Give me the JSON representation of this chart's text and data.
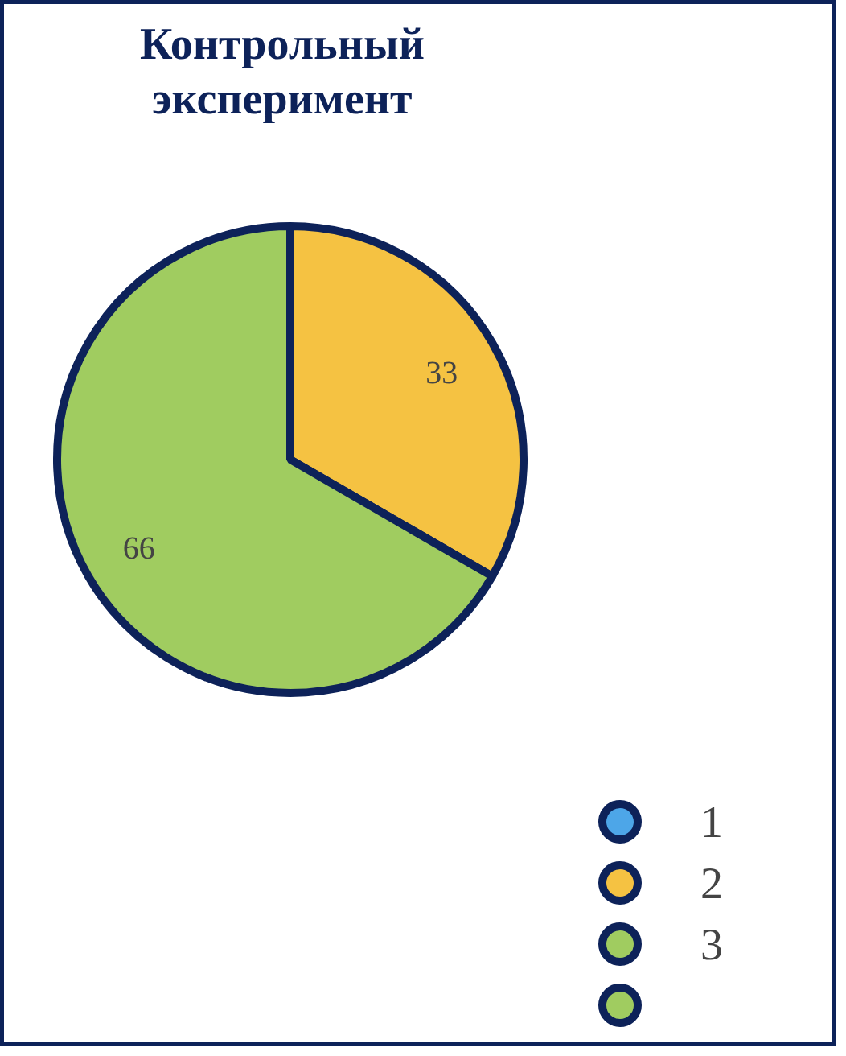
{
  "chart_data": {
    "type": "pie",
    "title": "Контрольный эксперимент",
    "categories": [
      "1",
      "2",
      "3",
      null
    ],
    "values": [
      0,
      33,
      66,
      0
    ],
    "colors": [
      "#4da6e8",
      "#f5c242",
      "#a0cc60",
      "#a0cc60"
    ],
    "data_labels": true,
    "legend": "bottom right"
  }
}
